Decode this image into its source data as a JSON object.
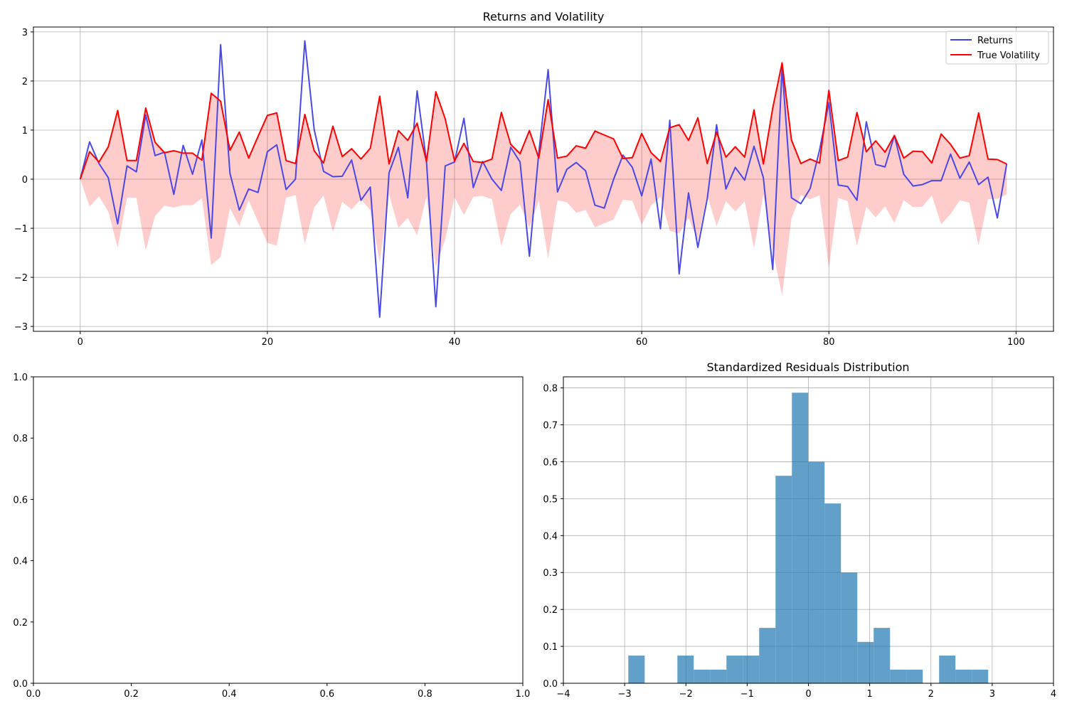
{
  "chart_data": [
    {
      "type": "line",
      "title": "Returns and Volatility",
      "xlabel": "",
      "ylabel": "",
      "xlim": [
        -5,
        104
      ],
      "ylim": [
        -3.1,
        3.1
      ],
      "xticks": [
        0,
        20,
        40,
        60,
        80,
        100
      ],
      "yticks": [
        -3,
        -2,
        -1,
        0,
        1,
        2,
        3
      ],
      "grid": true,
      "legend_position": "top-right",
      "x": [
        0,
        1,
        2,
        3,
        4,
        5,
        6,
        7,
        8,
        9,
        10,
        11,
        12,
        13,
        14,
        15,
        16,
        17,
        18,
        19,
        20,
        21,
        22,
        23,
        24,
        25,
        26,
        27,
        28,
        29,
        30,
        31,
        32,
        33,
        34,
        35,
        36,
        37,
        38,
        39,
        40,
        41,
        42,
        43,
        44,
        45,
        46,
        47,
        48,
        49,
        50,
        51,
        52,
        53,
        54,
        55,
        56,
        57,
        58,
        59,
        60,
        61,
        62,
        63,
        64,
        65,
        66,
        67,
        68,
        69,
        70,
        71,
        72,
        73,
        74,
        75,
        76,
        77,
        78,
        79,
        80,
        81,
        82,
        83,
        84,
        85,
        86,
        87,
        88,
        89,
        90,
        91,
        92,
        93,
        94,
        95,
        96,
        97,
        98,
        99
      ],
      "series": [
        {
          "name": "Returns",
          "color": "#4040e8",
          "values": [
            0.0,
            0.76,
            0.32,
            0.03,
            -0.91,
            0.27,
            0.15,
            1.31,
            0.48,
            0.55,
            -0.31,
            0.69,
            0.1,
            0.8,
            -1.2,
            2.74,
            0.12,
            -0.63,
            -0.2,
            -0.27,
            0.56,
            0.7,
            -0.21,
            -0.0,
            2.82,
            1.01,
            0.16,
            0.05,
            0.06,
            0.39,
            -0.43,
            -0.16,
            -2.81,
            0.13,
            0.65,
            -0.38,
            1.8,
            0.36,
            -2.6,
            0.27,
            0.35,
            1.24,
            -0.17,
            0.36,
            0.0,
            -0.23,
            0.65,
            0.35,
            -1.57,
            0.54,
            2.23,
            -0.26,
            0.2,
            0.34,
            0.17,
            -0.53,
            -0.59,
            -0.0,
            0.49,
            0.24,
            -0.34,
            0.41,
            -1.01,
            1.2,
            -1.93,
            -0.28,
            -1.39,
            -0.4,
            1.11,
            -0.2,
            0.24,
            -0.02,
            0.67,
            0.03,
            -1.84,
            2.28,
            -0.38,
            -0.5,
            -0.19,
            0.59,
            1.56,
            -0.12,
            -0.15,
            -0.43,
            1.17,
            0.3,
            0.25,
            0.89,
            0.1,
            -0.14,
            -0.11,
            -0.03,
            -0.03,
            0.51,
            0.02,
            0.35,
            -0.11,
            0.04,
            -0.79,
            0.31
          ]
        },
        {
          "name": "True Volatility",
          "color": "#ff0000",
          "values": [
            0.0,
            0.56,
            0.35,
            0.66,
            1.4,
            0.38,
            0.38,
            1.45,
            0.75,
            0.54,
            0.58,
            0.53,
            0.53,
            0.39,
            1.75,
            1.59,
            0.59,
            0.96,
            0.43,
            0.87,
            1.3,
            1.35,
            0.38,
            0.32,
            1.32,
            0.58,
            0.33,
            1.08,
            0.46,
            0.62,
            0.41,
            0.63,
            1.69,
            0.31,
            0.99,
            0.79,
            1.14,
            0.36,
            1.78,
            1.23,
            0.37,
            0.73,
            0.36,
            0.34,
            0.41,
            1.36,
            0.71,
            0.52,
            0.99,
            0.43,
            1.62,
            0.43,
            0.47,
            0.68,
            0.63,
            0.98,
            0.9,
            0.82,
            0.42,
            0.44,
            0.93,
            0.54,
            0.36,
            1.05,
            1.11,
            0.79,
            1.25,
            0.32,
            0.96,
            0.45,
            0.66,
            0.45,
            1.41,
            0.31,
            1.45,
            2.37,
            0.8,
            0.32,
            0.41,
            0.33,
            1.81,
            0.38,
            0.45,
            1.36,
            0.56,
            0.78,
            0.55,
            0.89,
            0.43,
            0.57,
            0.56,
            0.33,
            0.92,
            0.71,
            0.43,
            0.48,
            1.35,
            0.41,
            0.4,
            0.31
          ]
        }
      ]
    },
    {
      "type": "empty",
      "title": "",
      "xlim": [
        0,
        1
      ],
      "ylim": [
        0,
        1
      ],
      "xticks": [
        0.0,
        0.2,
        0.4,
        0.6,
        0.8,
        1.0
      ],
      "yticks": [
        0.0,
        0.2,
        0.4,
        0.6,
        0.8,
        1.0
      ],
      "xtick_labels": [
        "0.0",
        "0.2",
        "0.4",
        "0.6",
        "0.8",
        "1.0"
      ],
      "ytick_labels": [
        "0.0",
        "0.2",
        "0.4",
        "0.6",
        "0.8",
        "1.0"
      ],
      "grid": false
    },
    {
      "type": "bar",
      "title": "Standardized Residuals Distribution",
      "xlim": [
        -4,
        4
      ],
      "ylim": [
        0,
        0.83
      ],
      "xticks": [
        -4,
        -3,
        -2,
        -1,
        0,
        1,
        2,
        3,
        4
      ],
      "yticks": [
        0.0,
        0.1,
        0.2,
        0.3,
        0.4,
        0.5,
        0.6,
        0.7,
        0.8
      ],
      "ytick_labels": [
        "0.0",
        "0.1",
        "0.2",
        "0.3",
        "0.4",
        "0.5",
        "0.6",
        "0.7",
        "0.8"
      ],
      "grid": true,
      "color": "#1f77b4",
      "bin_edges": [
        -2.94,
        -2.673,
        -2.406,
        -2.139,
        -1.872,
        -1.605,
        -1.338,
        -1.071,
        -0.804,
        -0.537,
        -0.27,
        -0.003,
        0.264,
        0.531,
        0.798,
        1.065,
        1.332,
        1.599,
        1.866,
        2.133,
        2.4,
        2.667,
        2.934
      ],
      "values": [
        0.075,
        0,
        0,
        0.075,
        0.037,
        0.037,
        0.075,
        0.075,
        0.15,
        0.562,
        0.787,
        0.6,
        0.487,
        0.3,
        0.112,
        0.15,
        0.037,
        0.037,
        0,
        0.075,
        0.037,
        0.037
      ]
    }
  ]
}
